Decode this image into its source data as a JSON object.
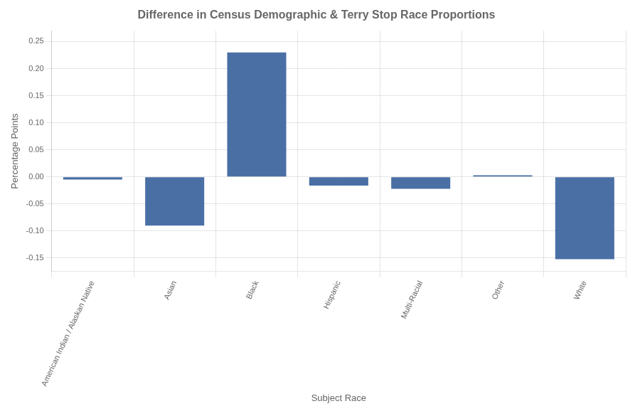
{
  "chart_data": {
    "type": "bar",
    "title": "Difference in Census Demographic & Terry Stop Race Proportions",
    "xlabel": "Subject Race",
    "ylabel": "Percentage Points",
    "categories": [
      "American Indian / Alaskan Native",
      "Asian",
      "Black",
      "Hispanic",
      "Multi-Racial",
      "Other",
      "White"
    ],
    "values": [
      -0.005,
      -0.09,
      0.23,
      -0.016,
      -0.022,
      0.003,
      -0.152
    ],
    "color": "#4a6fa5",
    "ylim": [
      -0.175,
      0.27
    ],
    "yticks": [
      -0.15,
      {
        "value": -0.1,
        "label": "-0.10"
      },
      -0.05,
      {
        "value": 0,
        "label": "0.00"
      },
      0.05,
      {
        "value": 0.1,
        "label": "0.10"
      },
      0.15,
      {
        "value": 0.2,
        "label": "0.20"
      },
      0.25
    ],
    "grid": true
  }
}
